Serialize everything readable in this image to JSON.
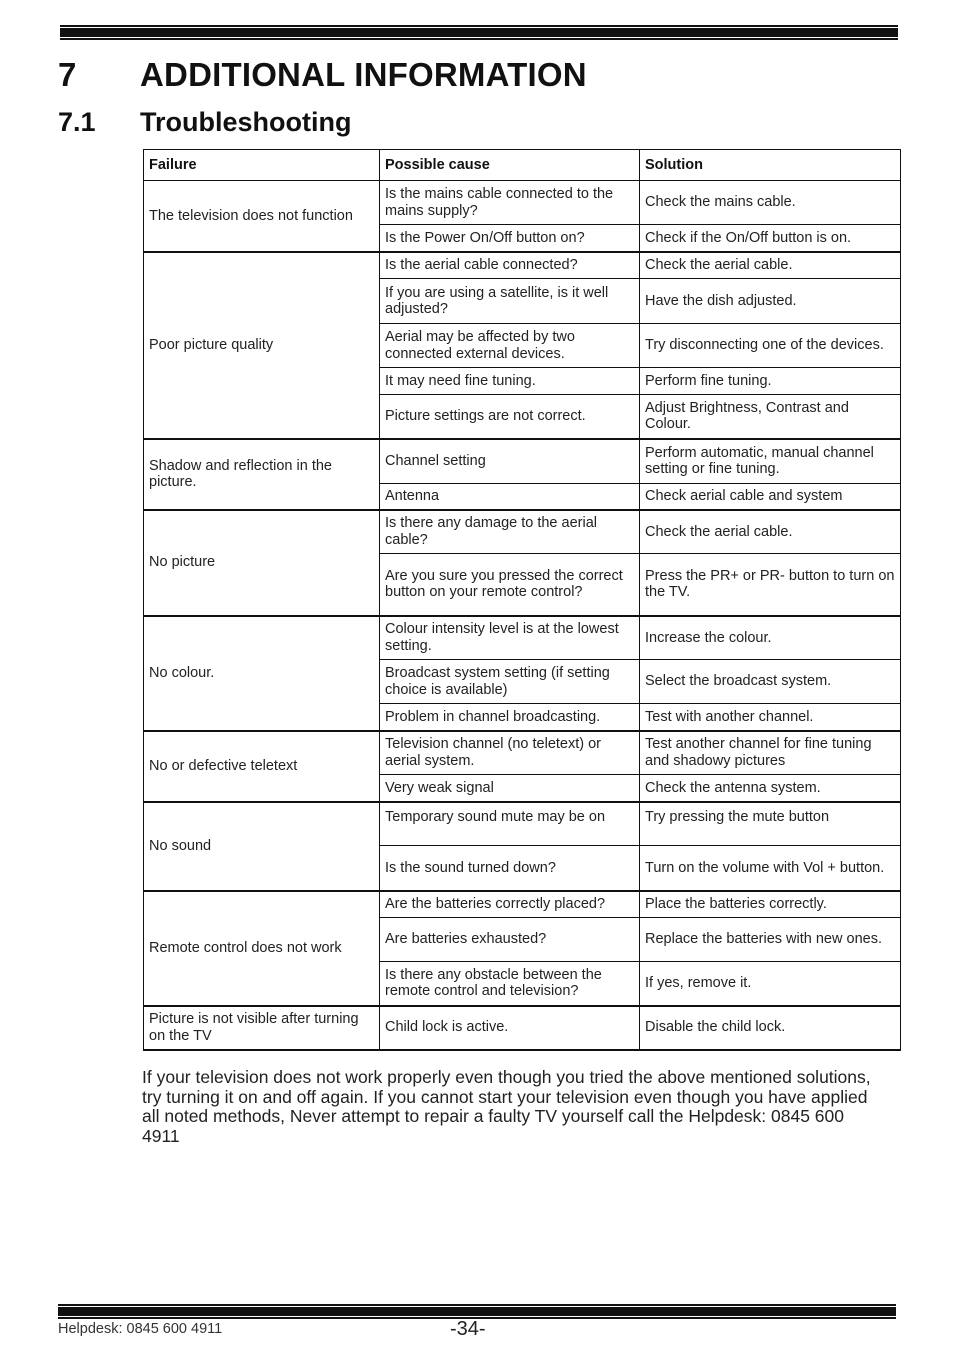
{
  "header": {
    "chapter_number": "7",
    "chapter_title": "ADDITIONAL INFORMATION",
    "section_number": "7.1",
    "section_title": "Troubleshooting"
  },
  "table": {
    "columns": [
      "Failure",
      "Possible cause",
      "Solution"
    ],
    "groups": [
      {
        "failure": "The television does not function",
        "rows": [
          {
            "cause": "Is the mains cable connected to the mains supply?",
            "solution": "Check the mains cable.",
            "h": 44
          },
          {
            "cause": "Is the Power On/Off button on?",
            "solution": "Check if the On/Off button is on.",
            "h": 27
          }
        ]
      },
      {
        "failure": "Poor picture quality",
        "rows": [
          {
            "cause": "Is the aerial cable connected?",
            "solution": "Check the aerial cable.",
            "h": 27
          },
          {
            "cause": "If you are using a satellite, is it well adjusted?",
            "solution": "Have the dish adjusted.",
            "h": 45
          },
          {
            "cause": "Aerial may be affected by two connected external devices.",
            "solution": "Try disconnecting one of the devices.",
            "h": 44
          },
          {
            "cause": "It may need fine tuning.",
            "solution": "Perform fine tuning.",
            "h": 27
          },
          {
            "cause": "Picture settings are not correct.",
            "solution": "Adjust Brightness, Contrast and Colour.",
            "h": 44
          }
        ]
      },
      {
        "failure": "Shadow and reflection in the picture.",
        "rows": [
          {
            "cause": "Channel setting",
            "solution": "Perform automatic, manual channel setting or fine tuning.",
            "h": 45
          },
          {
            "cause": "Antenna",
            "solution": "Check aerial cable and system",
            "h": 26
          }
        ]
      },
      {
        "failure": "No picture",
        "rows": [
          {
            "cause": "Is there any damage to the aerial cable?",
            "solution": "Check the aerial cable.",
            "h": 44
          },
          {
            "cause": "Are you sure you pressed the correct button on your remote control?",
            "solution": "Press the PR+ or PR- button to turn on the TV.",
            "h": 62
          }
        ]
      },
      {
        "failure": "No colour.",
        "rows": [
          {
            "cause": "Colour intensity level is at the lowest setting.",
            "solution": "Increase the colour.",
            "h": 44
          },
          {
            "cause": "Broadcast system setting (if setting choice is available)",
            "solution": "Select the broadcast system.",
            "h": 44
          },
          {
            "cause": "Problem in channel broadcasting.",
            "solution": "Test with another channel.",
            "h": 27
          }
        ]
      },
      {
        "failure": "No or defective teletext",
        "rows": [
          {
            "cause": "Television channel (no teletext) or aerial system.",
            "solution": "Test another channel for fine tuning and shadowy pictures",
            "h": 44
          },
          {
            "cause": "Very weak signal",
            "solution": "Check the antenna system.",
            "h": 27
          }
        ]
      },
      {
        "failure": "No sound",
        "rows": [
          {
            "cause": "Temporary sound mute may be on",
            "solution": "Try pressing the mute button",
            "h": 44,
            "valign": "top"
          },
          {
            "cause": "Is the sound turned down?",
            "solution": "Turn on the volume with Vol + button.",
            "h": 45
          }
        ]
      },
      {
        "failure": "Remote control does not work",
        "rows": [
          {
            "cause": "Are the batteries correctly placed?",
            "solution": "Place the batteries correctly.",
            "h": 27
          },
          {
            "cause": "Are batteries exhausted?",
            "solution": "Replace the batteries with new ones.",
            "h": 44
          },
          {
            "cause": "Is there any obstacle between the remote control and television?",
            "solution": "If yes, remove it.",
            "h": 44
          }
        ]
      },
      {
        "failure": "Picture is not visible after turning on the TV",
        "rows": [
          {
            "cause": "Child lock is active.",
            "solution": "Disable the child lock.",
            "h": 44
          }
        ]
      }
    ]
  },
  "note": "If your television does not work properly even though you tried the above mentioned solutions, try turning it on and off again. If you cannot start your television even though you have applied all noted methods, Never attempt to repair a faulty TV yourself call the Helpdesk: 0845 600 4911",
  "footer": {
    "helpdesk": "Helpdesk: 0845 600 4911",
    "page": "-34-"
  }
}
